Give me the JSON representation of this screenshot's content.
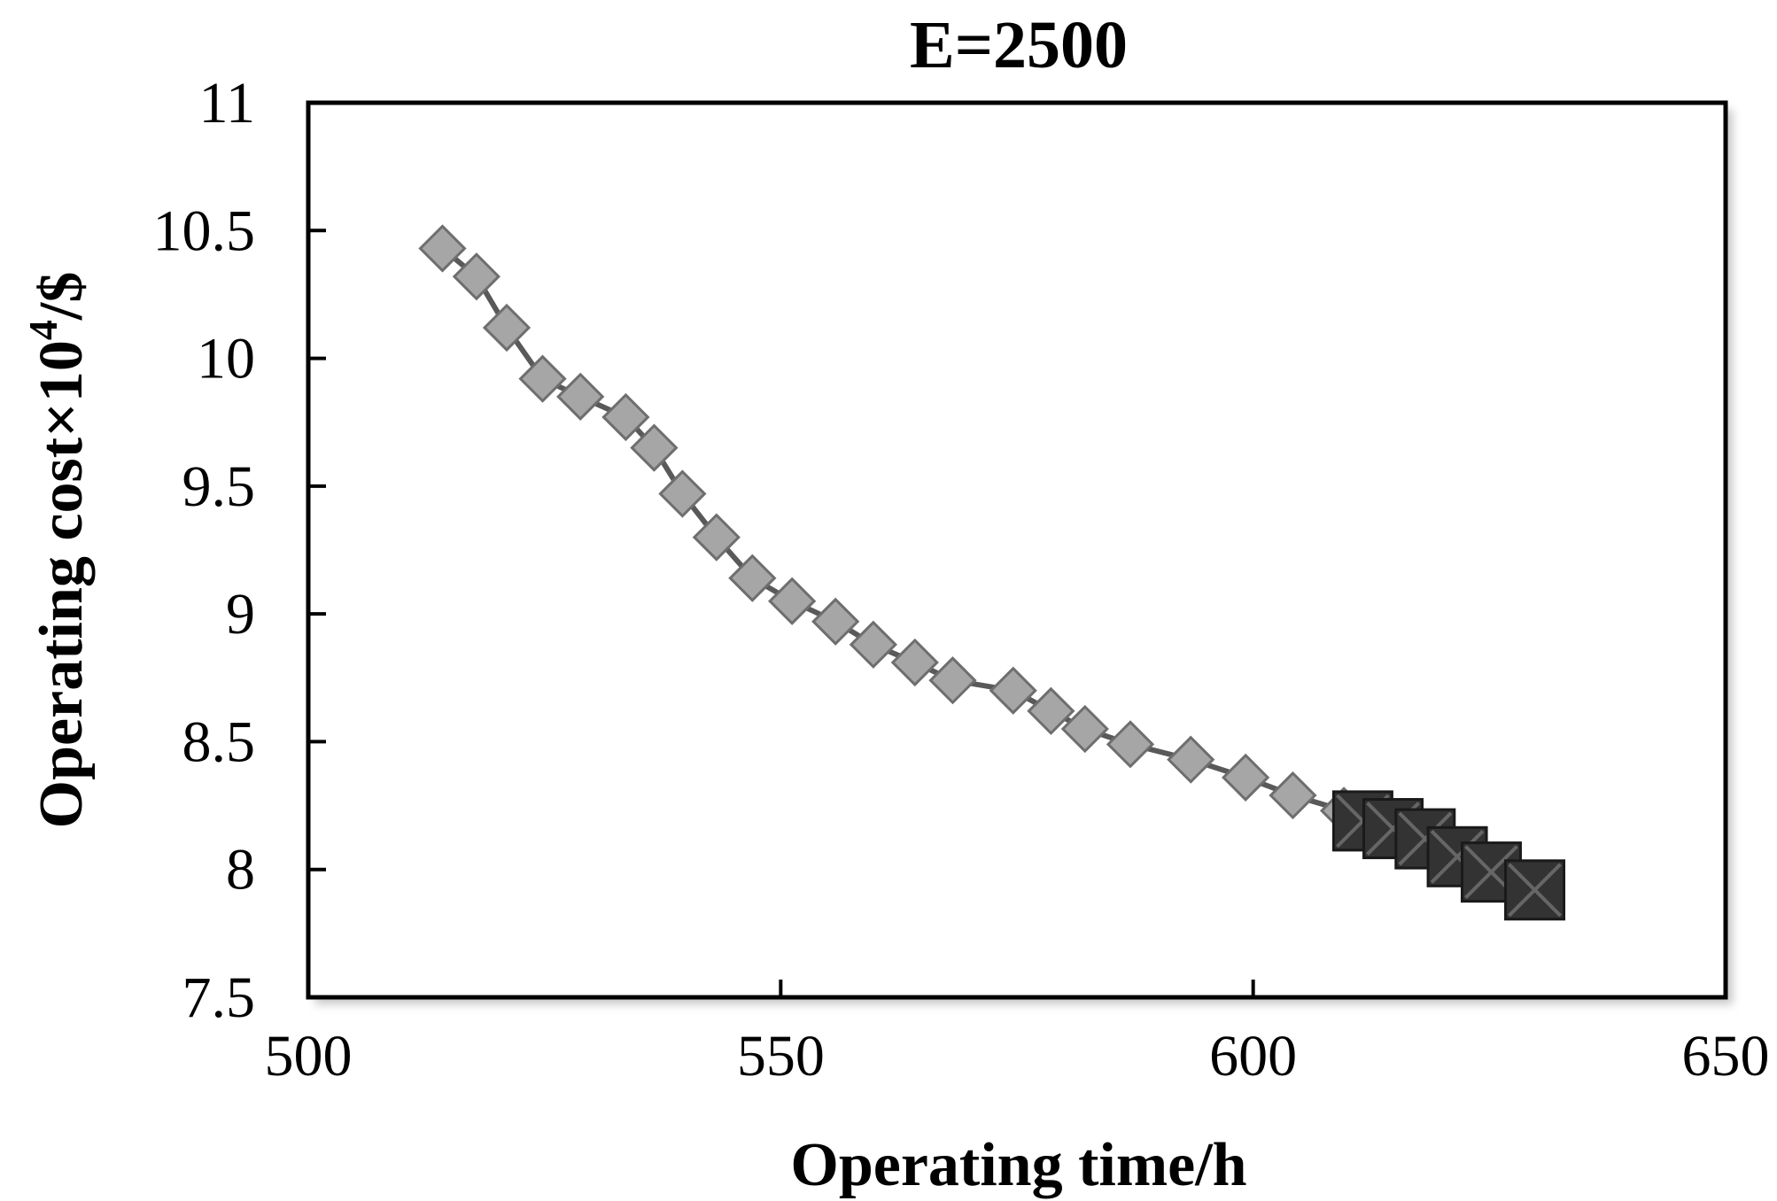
{
  "chart_data": {
    "type": "scatter",
    "title": "E=2500",
    "xlabel": "Operating time/h",
    "ylabel_main": "Operating cost×10",
    "ylabel_sup": "4",
    "ylabel_tail": "/$",
    "xlim": [
      500,
      650
    ],
    "ylim": [
      7.5,
      11
    ],
    "xticks": [
      500,
      550,
      600,
      650
    ],
    "xtick_labels": [
      "500",
      "550",
      "600",
      "650"
    ],
    "yticks": [
      7.5,
      8,
      8.5,
      9,
      9.5,
      10,
      10.5,
      11
    ],
    "ytick_labels": [
      "7.5",
      "8",
      "8.5",
      "9",
      "9.5",
      "10",
      "10.5",
      "11"
    ],
    "grid": false,
    "series": [
      {
        "marker": "diamond",
        "color": "#a6a6a6",
        "line_color": "#595959",
        "points": [
          [
            514.2,
            10.43
          ],
          [
            517.8,
            10.32
          ],
          [
            521.0,
            10.12
          ],
          [
            524.8,
            9.92
          ],
          [
            528.8,
            9.85
          ],
          [
            533.6,
            9.77
          ],
          [
            536.6,
            9.65
          ],
          [
            539.6,
            9.47
          ],
          [
            543.2,
            9.3
          ],
          [
            547.0,
            9.14
          ],
          [
            551.2,
            9.05
          ],
          [
            555.8,
            8.97
          ],
          [
            559.8,
            8.88
          ],
          [
            564.2,
            8.81
          ],
          [
            568.2,
            8.74
          ],
          [
            574.6,
            8.7
          ],
          [
            578.6,
            8.62
          ],
          [
            582.2,
            8.55
          ],
          [
            587.0,
            8.49
          ],
          [
            593.4,
            8.43
          ],
          [
            599.2,
            8.36
          ],
          [
            604.2,
            8.29
          ],
          [
            609.6,
            8.23
          ]
        ]
      },
      {
        "marker": "square-x",
        "color": "#333333",
        "points": [
          [
            611.6,
            8.19
          ],
          [
            614.8,
            8.16
          ],
          [
            618.2,
            8.12
          ],
          [
            621.6,
            8.05
          ],
          [
            625.2,
            7.99
          ],
          [
            629.8,
            7.92
          ]
        ]
      }
    ]
  }
}
